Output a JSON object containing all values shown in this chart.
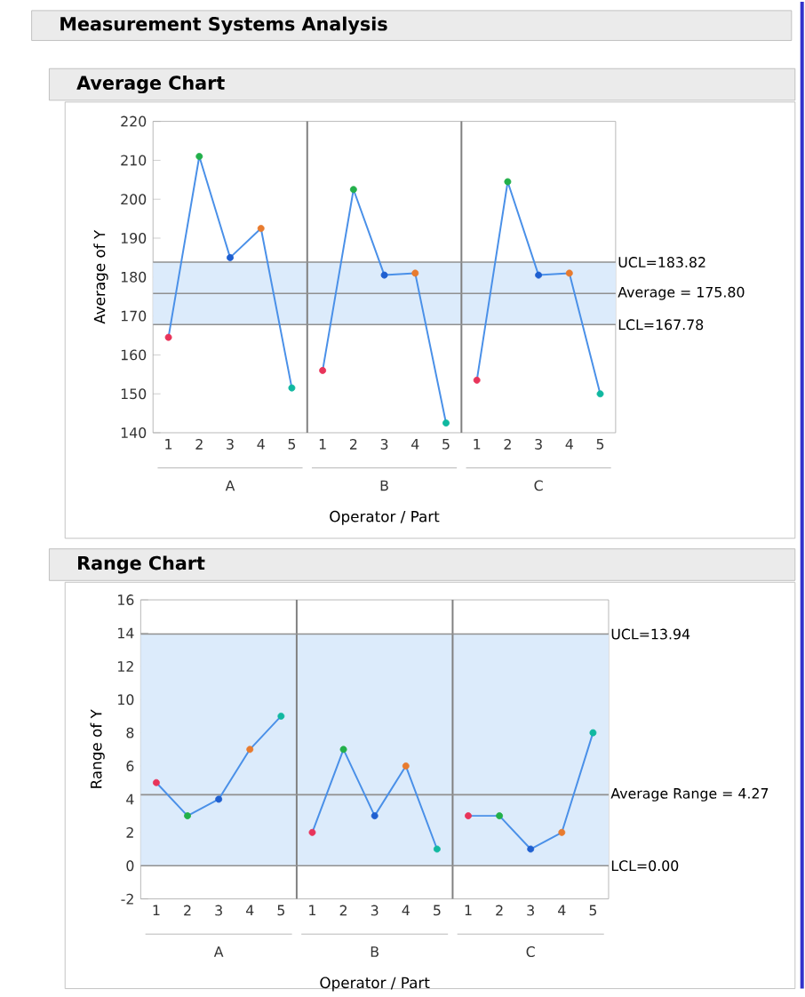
{
  "chart_data": [
    {
      "type": "line",
      "title": "Measurement Systems Analysis",
      "subtitle": "Average Chart",
      "xlabel": "Operator / Part",
      "ylabel": "Average of Y",
      "categories": [
        "1",
        "2",
        "3",
        "4",
        "5",
        "1",
        "2",
        "3",
        "4",
        "5",
        "1",
        "2",
        "3",
        "4",
        "5"
      ],
      "annotations": [
        "A",
        "B",
        "C"
      ],
      "colors": [
        "#e8345a",
        "#22b04a",
        "#1f5fd0",
        "#e87b2e",
        "#10b8a0",
        "#e8345a",
        "#22b04a",
        "#1f5fd0",
        "#e87b2e",
        "#10b8a0",
        "#e8345a",
        "#22b04a",
        "#1f5fd0",
        "#e87b2e",
        "#10b8a0"
      ],
      "series": [
        {
          "color": "#4a90e8",
          "values": [
            164.5,
            211,
            185,
            192.5,
            151.5,
            null,
            null,
            null,
            null,
            null,
            null,
            null,
            null,
            null,
            null
          ]
        },
        {
          "color": "#4a90e8",
          "values": [
            null,
            null,
            null,
            null,
            null,
            156,
            202.5,
            180.5,
            181,
            142.5,
            null,
            null,
            null,
            null,
            null
          ]
        },
        {
          "color": "#4a90e8",
          "values": [
            null,
            null,
            null,
            null,
            null,
            null,
            null,
            null,
            null,
            null,
            153.5,
            204.5,
            180.5,
            181,
            150
          ]
        }
      ],
      "ylim": [
        140,
        220
      ],
      "yticks": [
        140,
        150,
        160,
        170,
        180,
        190,
        200,
        210,
        220
      ],
      "ref_lines": [
        {
          "axis": "y",
          "value": 183.82,
          "label": "UCL=183.82",
          "color": "#909090"
        },
        {
          "axis": "y",
          "value": 175.8,
          "label": "Average = 175.80",
          "color": "#909090"
        },
        {
          "axis": "y",
          "value": 167.78,
          "label": "LCL=167.78",
          "color": "#909090"
        }
      ],
      "bands": [
        {
          "axis": "y",
          "from": 167.78,
          "to": 183.82,
          "color": "#dcebfb"
        }
      ],
      "marker": "circle",
      "line_style": "solid",
      "grid": false
    },
    {
      "type": "line",
      "title": "Range Chart",
      "xlabel": "Operator / Part",
      "ylabel": "Range of Y",
      "categories": [
        "1",
        "2",
        "3",
        "4",
        "5",
        "1",
        "2",
        "3",
        "4",
        "5",
        "1",
        "2",
        "3",
        "4",
        "5"
      ],
      "annotations": [
        "A",
        "B",
        "C"
      ],
      "colors": [
        "#e8345a",
        "#22b04a",
        "#1f5fd0",
        "#e87b2e",
        "#10b8a0",
        "#e8345a",
        "#22b04a",
        "#1f5fd0",
        "#e87b2e",
        "#10b8a0",
        "#e8345a",
        "#22b04a",
        "#1f5fd0",
        "#e87b2e",
        "#10b8a0"
      ],
      "series": [
        {
          "color": "#4a90e8",
          "values": [
            5,
            3,
            4,
            7,
            9,
            null,
            null,
            null,
            null,
            null,
            null,
            null,
            null,
            null,
            null
          ]
        },
        {
          "color": "#4a90e8",
          "values": [
            null,
            null,
            null,
            null,
            null,
            2,
            7,
            3,
            6,
            1,
            null,
            null,
            null,
            null,
            null
          ]
        },
        {
          "color": "#4a90e8",
          "values": [
            null,
            null,
            null,
            null,
            null,
            null,
            null,
            null,
            null,
            null,
            3,
            3,
            1,
            2,
            8
          ]
        }
      ],
      "ylim": [
        -2,
        16
      ],
      "yticks": [
        -2,
        0,
        2,
        4,
        6,
        8,
        10,
        12,
        14,
        16
      ],
      "ref_lines": [
        {
          "axis": "y",
          "value": 13.94,
          "label": "UCL=13.94",
          "color": "#909090"
        },
        {
          "axis": "y",
          "value": 4.27,
          "label": "Average Range = 4.27",
          "color": "#909090"
        },
        {
          "axis": "y",
          "value": 0.0,
          "label": "LCL=0.00",
          "color": "#909090"
        }
      ],
      "bands": [
        {
          "axis": "y",
          "from": 0.0,
          "to": 13.94,
          "color": "#dcebfb"
        }
      ],
      "marker": "circle",
      "line_style": "solid",
      "grid": false
    }
  ]
}
